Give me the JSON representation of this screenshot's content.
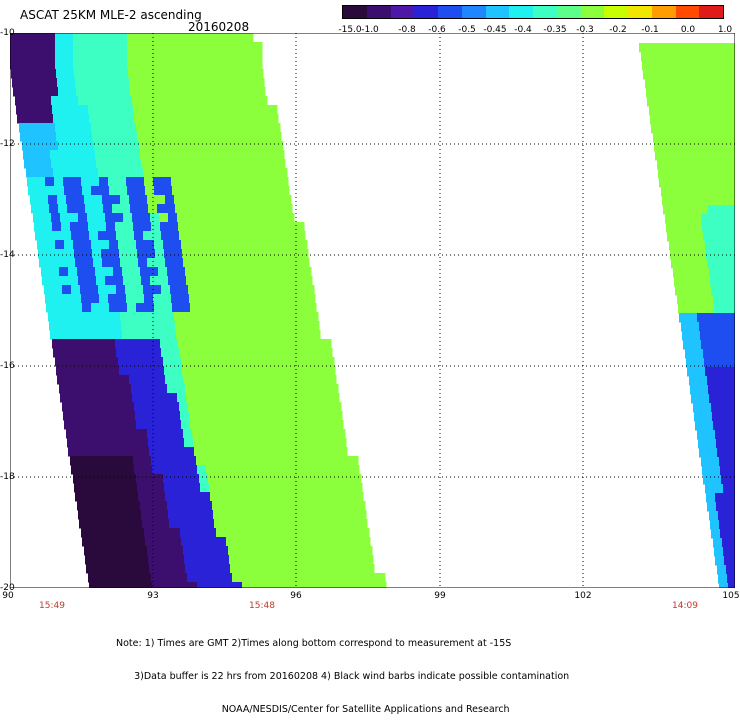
{
  "header": {
    "title": "ASCAT 25KM MLE-2 ascending",
    "date": "20160208"
  },
  "colorbar": {
    "colors": [
      "#2a0a3c",
      "#3c0f6e",
      "#4f17a8",
      "#2a22d6",
      "#1e4ef0",
      "#1f86ff",
      "#1fc3ff",
      "#1ff0f0",
      "#3dffc4",
      "#5cff8a",
      "#8cff3c",
      "#c8ff00",
      "#f0e600",
      "#ff9c00",
      "#ff4a00",
      "#e01a1a"
    ],
    "labels": [
      "-15.0",
      "-1.0",
      "-0.8",
      "-0.6",
      "-0.5",
      "-0.45",
      "-0.4",
      "-0.35",
      "-0.3",
      "-0.2",
      "-0.1",
      "0.0",
      "1.0"
    ]
  },
  "axes": {
    "y_labels": [
      "-10",
      "-12",
      "-14",
      "-16",
      "-18",
      "-20"
    ],
    "x_labels": [
      "90",
      "93",
      "96",
      "99",
      "102",
      "105"
    ],
    "time_labels": [
      "15:49",
      "15:48",
      "14:09"
    ]
  },
  "notes": {
    "line1": "Note: 1) Times are GMT 2)Times along bottom correspond to measurement at -15S",
    "line2": "      3)Data buffer is 22 hrs from 20160208 4) Black wind barbs indicate possible contamination",
    "line3": "                                   NOAA/NESDIS/Center for Satellite Applications and Research"
  }
}
